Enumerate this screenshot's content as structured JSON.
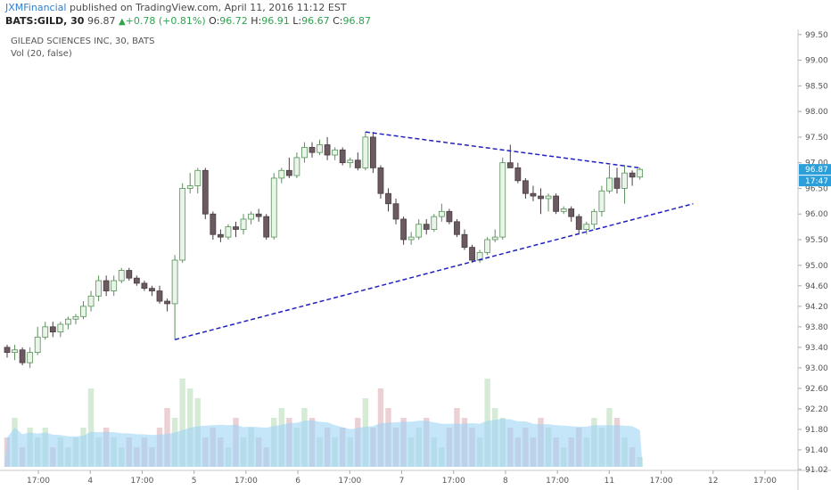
{
  "header": {
    "author": "JXMFinancial",
    "published": " published on TradingView.com, April 11, 2016 11:12 EST",
    "symbol": "BATS:GILD, 30",
    "last": "96.87",
    "change": "+0.78 (+0.81%)",
    "o_label": "O:",
    "o_value": "96.72",
    "h_label": "H:",
    "h_value": "96.91",
    "l_label": "L:",
    "l_value": "96.67",
    "c_label": "C:",
    "c_value": "96.87"
  },
  "legend": {
    "title": "GILEAD SCIENCES INC, 30, BATS",
    "volume": "Vol (20, false)"
  },
  "price_badge": "96.87",
  "time_badge": "17:47",
  "colors": {
    "up": "#e8f5e8",
    "up_border": "#5a8f5a",
    "down": "#6b5a5f",
    "down_border": "#4a3d42",
    "vol_up": "#cfe8cf",
    "vol_down": "#e8c8cc",
    "vol_ma": "#9fd4f5",
    "trendline": "#2020c0",
    "badge": "#2b9fd9"
  },
  "chart_data": {
    "type": "candlestick",
    "title": "GILEAD SCIENCES INC, 30, BATS",
    "ylim": [
      91.0,
      99.6
    ],
    "y_ticks": [
      "99.50",
      "99.00",
      "98.50",
      "98.00",
      "97.50",
      "97.00",
      "96.50",
      "96.00",
      "95.50",
      "95.00",
      "94.60",
      "94.20",
      "93.80",
      "93.40",
      "93.00",
      "92.60",
      "92.20",
      "91.80",
      "91.40",
      "91.02"
    ],
    "x_ticks": [
      "17:00",
      "4",
      "17:00",
      "5",
      "17:00",
      "6",
      "17:00",
      "7",
      "17:00",
      "8",
      "17:00",
      "11",
      "17:00",
      "12",
      "17:00"
    ],
    "candles": [
      {
        "o": 93.4,
        "h": 93.45,
        "l": 93.2,
        "c": 93.3
      },
      {
        "o": 93.3,
        "h": 93.45,
        "l": 93.15,
        "c": 93.35
      },
      {
        "o": 93.35,
        "h": 93.4,
        "l": 93.05,
        "c": 93.1
      },
      {
        "o": 93.1,
        "h": 93.4,
        "l": 93.0,
        "c": 93.3
      },
      {
        "o": 93.3,
        "h": 93.8,
        "l": 93.25,
        "c": 93.6
      },
      {
        "o": 93.6,
        "h": 93.9,
        "l": 93.55,
        "c": 93.8
      },
      {
        "o": 93.8,
        "h": 93.9,
        "l": 93.6,
        "c": 93.7
      },
      {
        "o": 93.7,
        "h": 93.9,
        "l": 93.6,
        "c": 93.85
      },
      {
        "o": 93.85,
        "h": 94.0,
        "l": 93.75,
        "c": 93.95
      },
      {
        "o": 93.95,
        "h": 94.05,
        "l": 93.85,
        "c": 94.0
      },
      {
        "o": 94.0,
        "h": 94.3,
        "l": 93.95,
        "c": 94.2
      },
      {
        "o": 94.2,
        "h": 94.5,
        "l": 94.1,
        "c": 94.4
      },
      {
        "o": 94.4,
        "h": 94.8,
        "l": 94.3,
        "c": 94.7
      },
      {
        "o": 94.7,
        "h": 94.8,
        "l": 94.4,
        "c": 94.5
      },
      {
        "o": 94.5,
        "h": 94.8,
        "l": 94.4,
        "c": 94.7
      },
      {
        "o": 94.7,
        "h": 94.95,
        "l": 94.65,
        "c": 94.9
      },
      {
        "o": 94.9,
        "h": 94.95,
        "l": 94.7,
        "c": 94.75
      },
      {
        "o": 94.75,
        "h": 94.8,
        "l": 94.6,
        "c": 94.65
      },
      {
        "o": 94.65,
        "h": 94.7,
        "l": 94.5,
        "c": 94.55
      },
      {
        "o": 94.55,
        "h": 94.6,
        "l": 94.4,
        "c": 94.5
      },
      {
        "o": 94.5,
        "h": 94.6,
        "l": 94.25,
        "c": 94.3
      },
      {
        "o": 94.3,
        "h": 94.35,
        "l": 94.1,
        "c": 94.25
      },
      {
        "o": 94.25,
        "h": 95.2,
        "l": 93.55,
        "c": 95.1
      },
      {
        "o": 95.1,
        "h": 96.6,
        "l": 95.05,
        "c": 96.5
      },
      {
        "o": 96.5,
        "h": 96.8,
        "l": 96.4,
        "c": 96.55
      },
      {
        "o": 96.55,
        "h": 96.9,
        "l": 96.4,
        "c": 96.85
      },
      {
        "o": 96.85,
        "h": 96.9,
        "l": 95.9,
        "c": 96.0
      },
      {
        "o": 96.0,
        "h": 96.05,
        "l": 95.5,
        "c": 95.6
      },
      {
        "o": 95.6,
        "h": 95.7,
        "l": 95.45,
        "c": 95.55
      },
      {
        "o": 95.55,
        "h": 95.8,
        "l": 95.5,
        "c": 95.75
      },
      {
        "o": 95.75,
        "h": 95.85,
        "l": 95.55,
        "c": 95.7
      },
      {
        "o": 95.7,
        "h": 96.0,
        "l": 95.6,
        "c": 95.9
      },
      {
        "o": 95.9,
        "h": 96.05,
        "l": 95.8,
        "c": 96.0
      },
      {
        "o": 96.0,
        "h": 96.1,
        "l": 95.85,
        "c": 95.95
      },
      {
        "o": 95.95,
        "h": 96.0,
        "l": 95.5,
        "c": 95.55
      },
      {
        "o": 95.55,
        "h": 96.8,
        "l": 95.5,
        "c": 96.7
      },
      {
        "o": 96.7,
        "h": 96.9,
        "l": 96.6,
        "c": 96.85
      },
      {
        "o": 96.85,
        "h": 97.1,
        "l": 96.7,
        "c": 96.75
      },
      {
        "o": 96.75,
        "h": 97.2,
        "l": 96.7,
        "c": 97.1
      },
      {
        "o": 97.1,
        "h": 97.4,
        "l": 97.0,
        "c": 97.3
      },
      {
        "o": 97.3,
        "h": 97.4,
        "l": 97.1,
        "c": 97.2
      },
      {
        "o": 97.2,
        "h": 97.45,
        "l": 97.15,
        "c": 97.35
      },
      {
        "o": 97.35,
        "h": 97.5,
        "l": 97.05,
        "c": 97.15
      },
      {
        "o": 97.15,
        "h": 97.3,
        "l": 97.05,
        "c": 97.25
      },
      {
        "o": 97.25,
        "h": 97.3,
        "l": 96.95,
        "c": 97.0
      },
      {
        "o": 97.0,
        "h": 97.1,
        "l": 96.9,
        "c": 97.05
      },
      {
        "o": 97.05,
        "h": 97.2,
        "l": 96.85,
        "c": 96.9
      },
      {
        "o": 96.9,
        "h": 97.6,
        "l": 96.85,
        "c": 97.5
      },
      {
        "o": 97.5,
        "h": 97.6,
        "l": 96.8,
        "c": 96.9
      },
      {
        "o": 96.9,
        "h": 96.95,
        "l": 96.3,
        "c": 96.4
      },
      {
        "o": 96.4,
        "h": 96.5,
        "l": 96.05,
        "c": 96.2
      },
      {
        "o": 96.2,
        "h": 96.3,
        "l": 95.8,
        "c": 95.9
      },
      {
        "o": 95.9,
        "h": 95.95,
        "l": 95.4,
        "c": 95.5
      },
      {
        "o": 95.5,
        "h": 95.65,
        "l": 95.4,
        "c": 95.55
      },
      {
        "o": 95.55,
        "h": 95.9,
        "l": 95.5,
        "c": 95.8
      },
      {
        "o": 95.8,
        "h": 95.9,
        "l": 95.6,
        "c": 95.7
      },
      {
        "o": 95.7,
        "h": 96.0,
        "l": 95.65,
        "c": 95.95
      },
      {
        "o": 95.95,
        "h": 96.2,
        "l": 95.85,
        "c": 96.05
      },
      {
        "o": 96.05,
        "h": 96.1,
        "l": 95.8,
        "c": 95.85
      },
      {
        "o": 95.85,
        "h": 95.9,
        "l": 95.55,
        "c": 95.6
      },
      {
        "o": 95.6,
        "h": 95.7,
        "l": 95.3,
        "c": 95.35
      },
      {
        "o": 95.35,
        "h": 95.4,
        "l": 95.05,
        "c": 95.1
      },
      {
        "o": 95.1,
        "h": 95.3,
        "l": 95.05,
        "c": 95.25
      },
      {
        "o": 95.25,
        "h": 95.55,
        "l": 95.2,
        "c": 95.5
      },
      {
        "o": 95.5,
        "h": 95.7,
        "l": 95.45,
        "c": 95.55
      },
      {
        "o": 95.55,
        "h": 97.1,
        "l": 95.5,
        "c": 97.0
      },
      {
        "o": 97.0,
        "h": 97.35,
        "l": 96.9,
        "c": 96.9
      },
      {
        "o": 96.9,
        "h": 97.0,
        "l": 96.6,
        "c": 96.65
      },
      {
        "o": 96.65,
        "h": 96.7,
        "l": 96.3,
        "c": 96.4
      },
      {
        "o": 96.4,
        "h": 96.55,
        "l": 96.25,
        "c": 96.35
      },
      {
        "o": 96.35,
        "h": 96.5,
        "l": 96.0,
        "c": 96.3
      },
      {
        "o": 96.3,
        "h": 96.4,
        "l": 96.05,
        "c": 96.35
      },
      {
        "o": 96.35,
        "h": 96.4,
        "l": 96.0,
        "c": 96.05
      },
      {
        "o": 96.05,
        "h": 96.15,
        "l": 96.0,
        "c": 96.1
      },
      {
        "o": 96.1,
        "h": 96.15,
        "l": 95.85,
        "c": 95.95
      },
      {
        "o": 95.95,
        "h": 96.0,
        "l": 95.6,
        "c": 95.7
      },
      {
        "o": 95.7,
        "h": 95.85,
        "l": 95.6,
        "c": 95.8
      },
      {
        "o": 95.8,
        "h": 96.1,
        "l": 95.7,
        "c": 96.05
      },
      {
        "o": 96.05,
        "h": 96.55,
        "l": 95.95,
        "c": 96.45
      },
      {
        "o": 96.45,
        "h": 96.95,
        "l": 96.4,
        "c": 96.7
      },
      {
        "o": 96.7,
        "h": 96.9,
        "l": 96.4,
        "c": 96.5
      },
      {
        "o": 96.5,
        "h": 96.95,
        "l": 96.2,
        "c": 96.8
      },
      {
        "o": 96.8,
        "h": 96.85,
        "l": 96.55,
        "c": 96.72
      },
      {
        "o": 96.72,
        "h": 96.91,
        "l": 96.67,
        "c": 96.87
      }
    ],
    "volumes": [
      3,
      5,
      2,
      4,
      3,
      4,
      2,
      3,
      2,
      3,
      4,
      8,
      3,
      4,
      3,
      2,
      3,
      2,
      3,
      2,
      4,
      6,
      5,
      9,
      8,
      7,
      3,
      4,
      3,
      2,
      5,
      3,
      4,
      3,
      2,
      5,
      6,
      5,
      4,
      6,
      5,
      3,
      4,
      3,
      4,
      3,
      5,
      7,
      4,
      8,
      6,
      4,
      5,
      3,
      4,
      5,
      3,
      2,
      4,
      6,
      5,
      4,
      3,
      9,
      6,
      5,
      4,
      3,
      4,
      3,
      5,
      4,
      3,
      2,
      3,
      4,
      3,
      5,
      4,
      6,
      5,
      3,
      2,
      1
    ],
    "trendlines": [
      {
        "name": "upper",
        "from": {
          "bar": 47,
          "price": 97.6
        },
        "to": {
          "bar": 83,
          "price": 96.9
        }
      },
      {
        "name": "lower",
        "from": {
          "bar": 22,
          "price": 93.55
        },
        "to": {
          "bar": 90,
          "price": 96.2
        }
      }
    ],
    "grid": false,
    "legend_position": "top-left"
  }
}
